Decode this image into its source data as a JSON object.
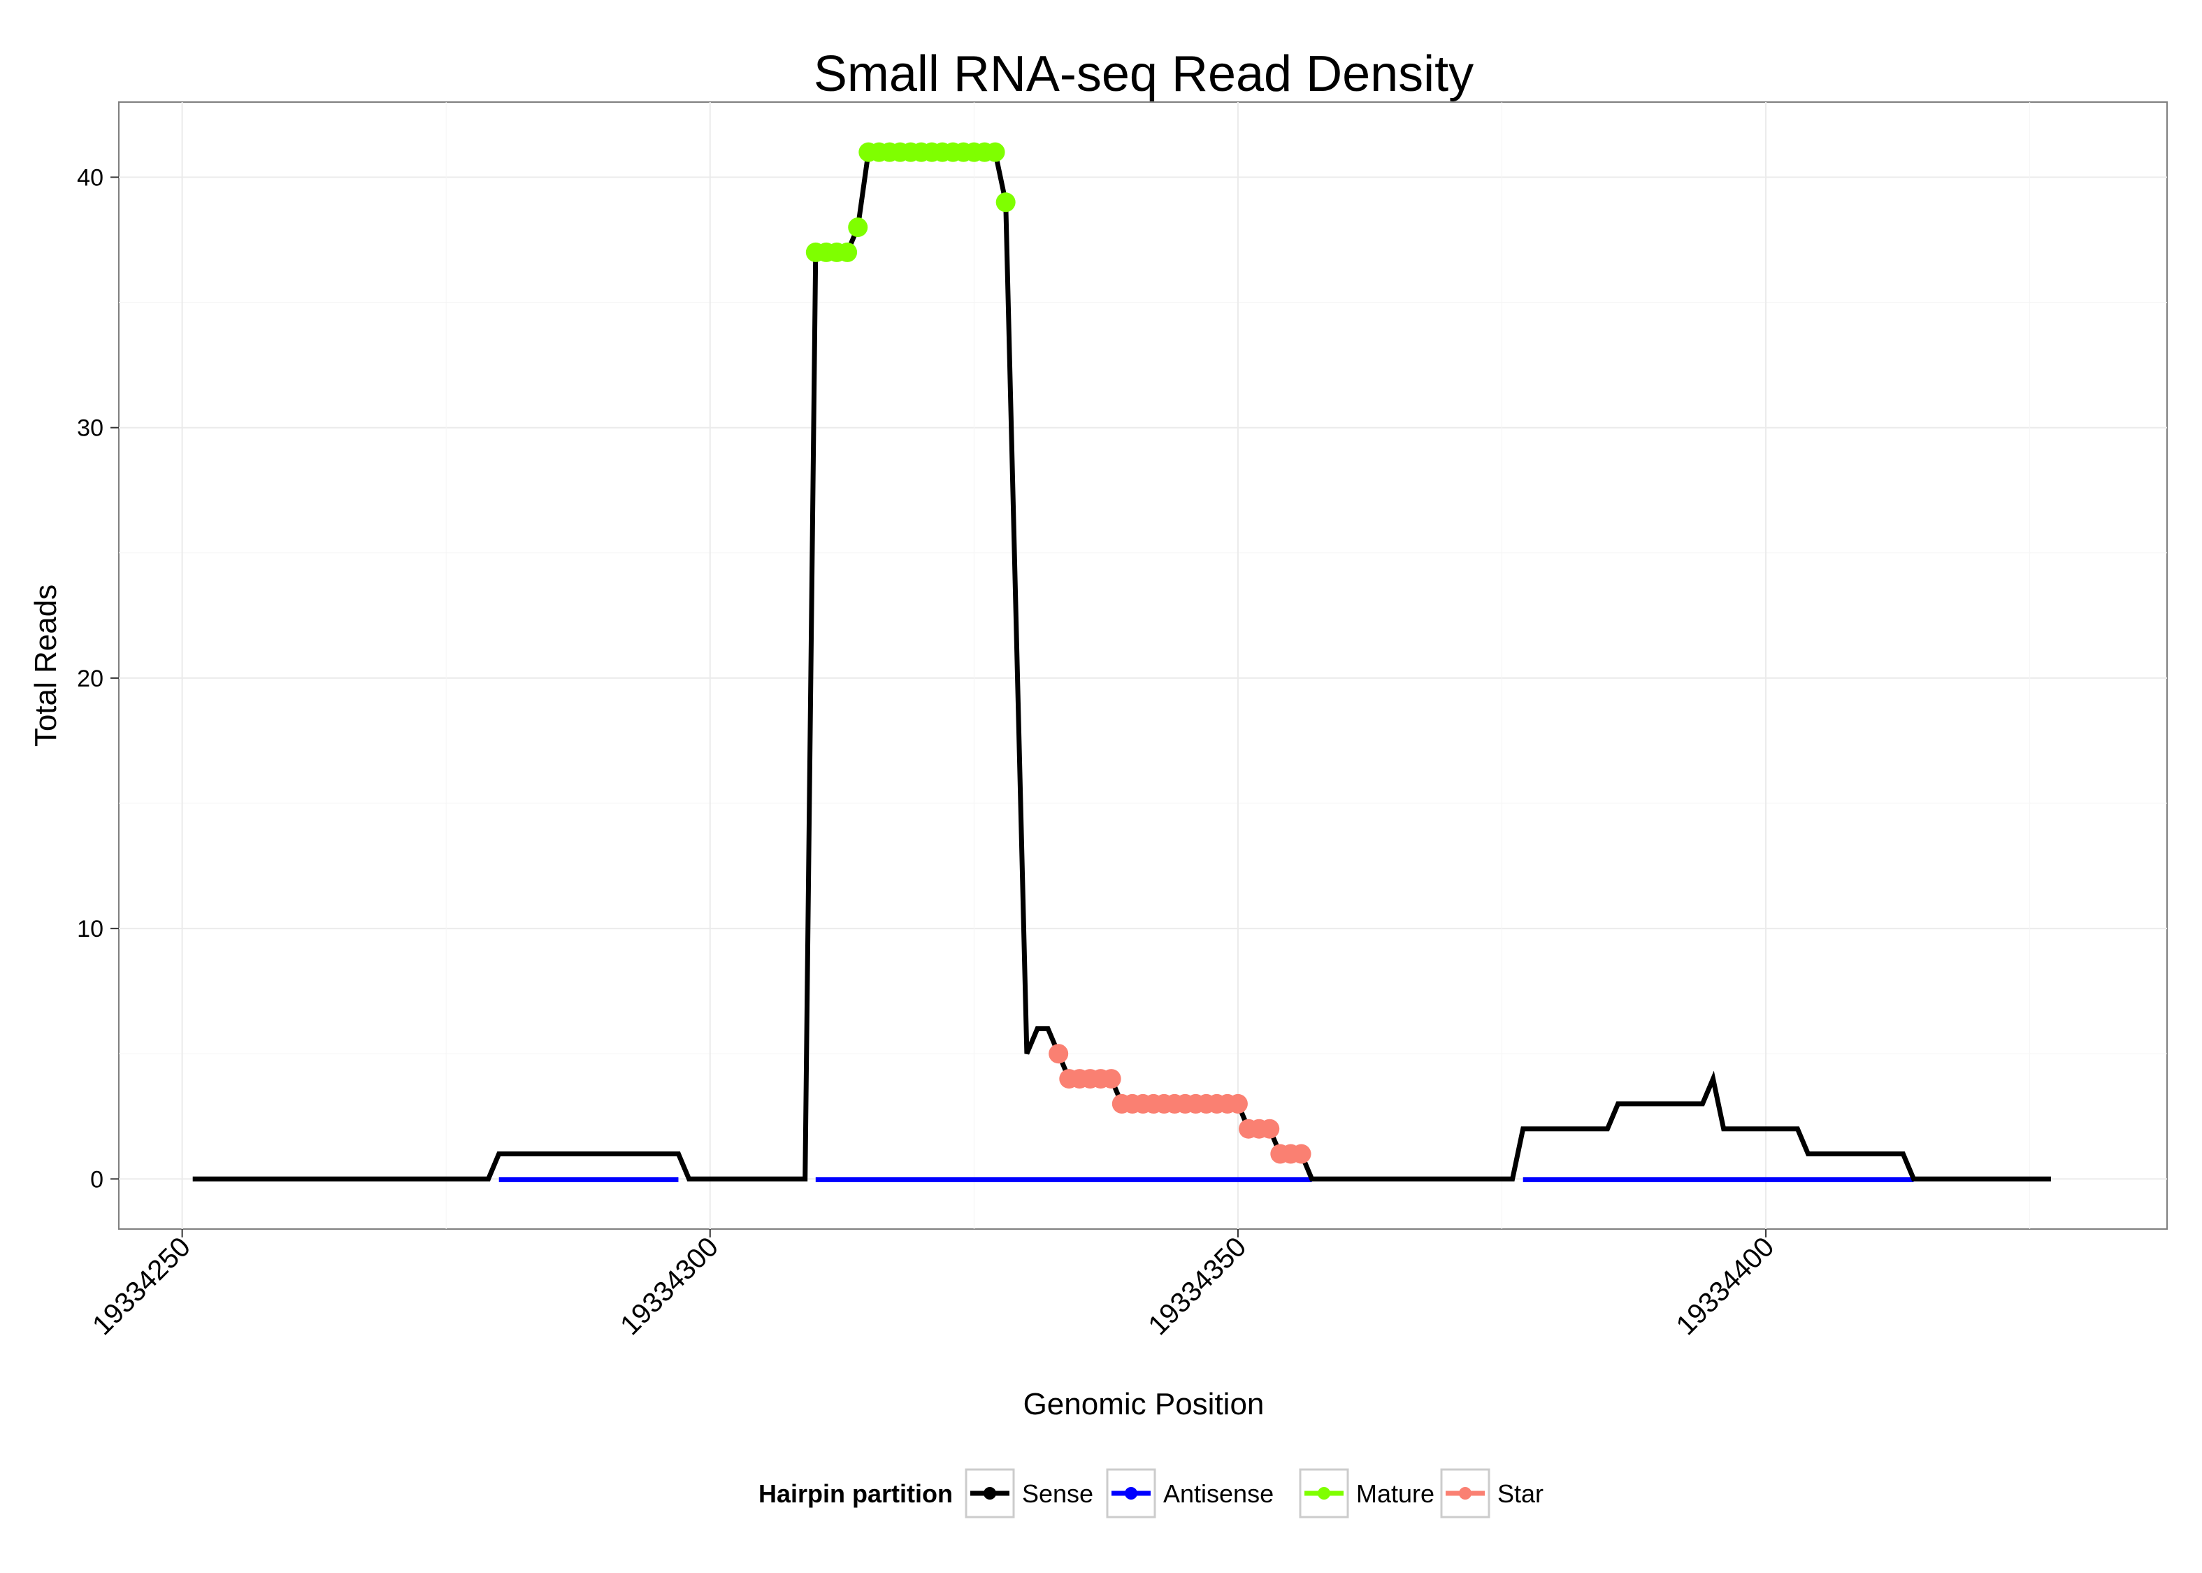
{
  "chart_data": {
    "type": "line",
    "title": "Small RNA-seq Read Density",
    "xlabel": "Genomic Position",
    "ylabel": "Total Reads",
    "xlim": [
      19334244,
      19334438
    ],
    "ylim": [
      -2,
      43
    ],
    "x_ticks": [
      19334250,
      19334300,
      19334350,
      19334400
    ],
    "x_tick_labels": [
      "19334250",
      "19334300",
      "19334350",
      "19334400"
    ],
    "y_ticks": [
      0,
      10,
      20,
      30,
      40
    ],
    "y_tick_labels": [
      "0",
      "10",
      "20",
      "30",
      "40"
    ],
    "grid": true,
    "legend": {
      "title": "Hairpin partition",
      "position": "bottom",
      "entries": [
        {
          "name": "Sense",
          "color": "#000000"
        },
        {
          "name": "Antisense",
          "color": "#0000FF"
        },
        {
          "name": "Mature",
          "color": "#7FFF00"
        },
        {
          "name": "Star",
          "color": "#FA8072"
        }
      ]
    },
    "series": [
      {
        "name": "Sense",
        "color": "#000000",
        "points": [
          [
            19334251,
            0
          ],
          [
            19334279,
            0
          ],
          [
            19334280,
            1
          ],
          [
            19334297,
            1
          ],
          [
            19334298,
            0
          ],
          [
            19334309,
            0
          ],
          [
            19334310,
            37
          ],
          [
            19334313,
            37
          ],
          [
            19334314,
            38
          ],
          [
            19334315,
            41
          ],
          [
            19334327,
            41
          ],
          [
            19334328,
            39
          ],
          [
            19334330,
            5
          ],
          [
            19334331,
            6
          ],
          [
            19334332,
            6
          ],
          [
            19334333,
            5
          ],
          [
            19334334,
            4
          ],
          [
            19334338,
            4
          ],
          [
            19334339,
            3
          ],
          [
            19334350,
            3
          ],
          [
            19334351,
            2
          ],
          [
            19334353,
            2
          ],
          [
            19334354,
            1
          ],
          [
            19334356,
            1
          ],
          [
            19334357,
            0
          ],
          [
            19334376,
            0
          ],
          [
            19334377,
            2
          ],
          [
            19334385,
            2
          ],
          [
            19334386,
            3
          ],
          [
            19334394,
            3
          ],
          [
            19334395,
            4
          ],
          [
            19334396,
            2
          ],
          [
            19334403,
            2
          ],
          [
            19334404,
            1
          ],
          [
            19334413,
            1
          ],
          [
            19334414,
            0
          ],
          [
            19334427,
            0
          ]
        ]
      },
      {
        "name": "Antisense",
        "color": "#0000FF",
        "points": [
          [
            19334280,
            0
          ],
          [
            19334297,
            0
          ],
          [
            19334310,
            0
          ],
          [
            19334357,
            0
          ],
          [
            19334377,
            0
          ],
          [
            19334414,
            0
          ]
        ]
      },
      {
        "name": "Mature",
        "color": "#7FFF00",
        "points": [
          [
            19334310,
            37
          ],
          [
            19334311,
            37
          ],
          [
            19334312,
            37
          ],
          [
            19334313,
            37
          ],
          [
            19334314,
            38
          ],
          [
            19334315,
            41
          ],
          [
            19334316,
            41
          ],
          [
            19334317,
            41
          ],
          [
            19334318,
            41
          ],
          [
            19334319,
            41
          ],
          [
            19334320,
            41
          ],
          [
            19334321,
            41
          ],
          [
            19334322,
            41
          ],
          [
            19334323,
            41
          ],
          [
            19334324,
            41
          ],
          [
            19334325,
            41
          ],
          [
            19334326,
            41
          ],
          [
            19334327,
            41
          ],
          [
            19334328,
            39
          ]
        ]
      },
      {
        "name": "Star",
        "color": "#FA8072",
        "points": [
          [
            19334333,
            5
          ],
          [
            19334334,
            4
          ],
          [
            19334335,
            4
          ],
          [
            19334336,
            4
          ],
          [
            19334337,
            4
          ],
          [
            19334338,
            4
          ],
          [
            19334339,
            3
          ],
          [
            19334340,
            3
          ],
          [
            19334341,
            3
          ],
          [
            19334342,
            3
          ],
          [
            19334343,
            3
          ],
          [
            19334344,
            3
          ],
          [
            19334345,
            3
          ],
          [
            19334346,
            3
          ],
          [
            19334347,
            3
          ],
          [
            19334348,
            3
          ],
          [
            19334349,
            3
          ],
          [
            19334350,
            3
          ],
          [
            19334351,
            2
          ],
          [
            19334352,
            2
          ],
          [
            19334353,
            2
          ],
          [
            19334354,
            1
          ],
          [
            19334355,
            1
          ],
          [
            19334356,
            1
          ]
        ]
      }
    ]
  }
}
